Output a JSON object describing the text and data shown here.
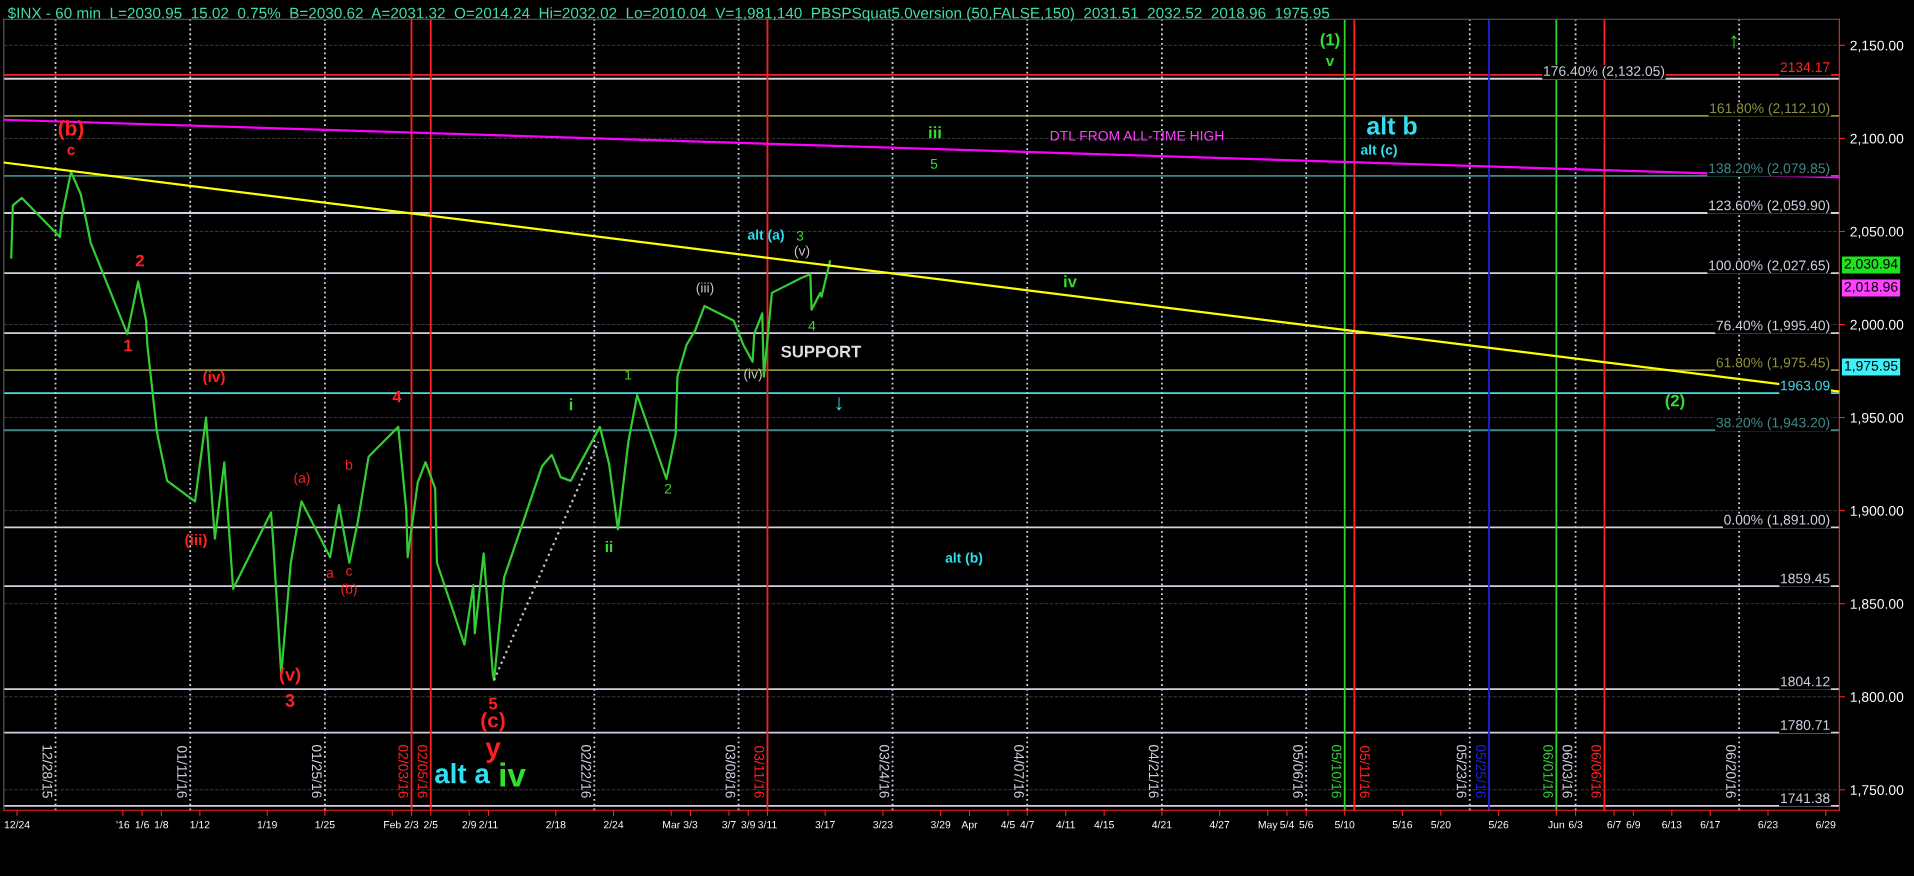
{
  "chart_data": {
    "type": "line",
    "title": "$INX - 60 min  L=2030.95  15.02  0.75%  B=2030.62  A=2031.32  O=2014.24  Hi=2032.02  Lo=2010.04  V=1,981,140  PBSPSquat5.0version (50,FALSE,150)  2031.51  2032.52  2018.96  1975.95",
    "xlim": [
      "2015-12-22T15:00",
      "2016-06-30T10:00"
    ],
    "ylim": [
      1739,
      2164
    ],
    "yticks": [
      {
        "value": 1750,
        "label": "1,750.00"
      },
      {
        "value": 1800,
        "label": "1,800.00"
      },
      {
        "value": 1850,
        "label": "1,850.00"
      },
      {
        "value": 1900,
        "label": "1,900.00"
      },
      {
        "value": 1950,
        "label": "1,950.00"
      },
      {
        "value": 2000,
        "label": "2,000.00"
      },
      {
        "value": 2050,
        "label": "2,050.00"
      },
      {
        "value": 2100,
        "label": "2,100.00"
      },
      {
        "value": 2150,
        "label": "2,150.00"
      }
    ],
    "xticks": [
      {
        "value": "2015-12-24",
        "label": "12/24"
      },
      {
        "value": "2016-01-04",
        "label": "'16"
      },
      {
        "value": "2016-01-06",
        "label": "1/6"
      },
      {
        "value": "2016-01-08",
        "label": "1/8"
      },
      {
        "value": "2016-01-12",
        "label": "1/12"
      },
      {
        "value": "2016-01-19",
        "label": "1/19"
      },
      {
        "value": "2016-01-25",
        "label": "1/25"
      },
      {
        "value": "2016-02-01",
        "label": "Feb"
      },
      {
        "value": "2016-02-03",
        "label": "2/3"
      },
      {
        "value": "2016-02-05",
        "label": "2/5"
      },
      {
        "value": "2016-02-09",
        "label": "2/9"
      },
      {
        "value": "2016-02-11",
        "label": "2/11"
      },
      {
        "value": "2016-02-18",
        "label": "2/18"
      },
      {
        "value": "2016-02-24",
        "label": "2/24"
      },
      {
        "value": "2016-03-01",
        "label": "Mar"
      },
      {
        "value": "2016-03-03",
        "label": "3/3"
      },
      {
        "value": "2016-03-07",
        "label": "3/7"
      },
      {
        "value": "2016-03-09",
        "label": "3/9"
      },
      {
        "value": "2016-03-11",
        "label": "3/11"
      },
      {
        "value": "2016-03-17",
        "label": "3/17"
      },
      {
        "value": "2016-03-23",
        "label": "3/23"
      },
      {
        "value": "2016-03-29",
        "label": "3/29"
      },
      {
        "value": "2016-04-01",
        "label": "Apr"
      },
      {
        "value": "2016-04-05",
        "label": "4/5"
      },
      {
        "value": "2016-04-07",
        "label": "4/7"
      },
      {
        "value": "2016-04-11",
        "label": "4/11"
      },
      {
        "value": "2016-04-15",
        "label": "4/15"
      },
      {
        "value": "2016-04-21",
        "label": "4/21"
      },
      {
        "value": "2016-04-27",
        "label": "4/27"
      },
      {
        "value": "2016-05-02",
        "label": "May"
      },
      {
        "value": "2016-05-04",
        "label": "5/4"
      },
      {
        "value": "2016-05-06",
        "label": "5/6"
      },
      {
        "value": "2016-05-10",
        "label": "5/10"
      },
      {
        "value": "2016-05-16",
        "label": "5/16"
      },
      {
        "value": "2016-05-20",
        "label": "5/20"
      },
      {
        "value": "2016-05-26",
        "label": "5/26"
      },
      {
        "value": "2016-06-01",
        "label": "Jun"
      },
      {
        "value": "2016-06-03",
        "label": "6/3"
      },
      {
        "value": "2016-06-07",
        "label": "6/7"
      },
      {
        "value": "2016-06-09",
        "label": "6/9"
      },
      {
        "value": "2016-06-13",
        "label": "6/13"
      },
      {
        "value": "2016-06-17",
        "label": "6/17"
      },
      {
        "value": "2016-06-23",
        "label": "6/23"
      },
      {
        "value": "2016-06-29",
        "label": "6/29"
      }
    ],
    "grid": "y",
    "series": [
      {
        "color": "#33cc33",
        "x": [
          "2015-12-23T09:30",
          "2015-12-23T13:30",
          "2015-12-24T12:00",
          "2015-12-28T11:00",
          "2015-12-28T15:00",
          "2015-12-29T14:30",
          "2015-12-30T15:00",
          "2015-12-31T11:00",
          "2015-12-31T15:30",
          "2016-01-04T11:00",
          "2016-01-05T14:00",
          "2016-01-06T10:00",
          "2016-01-06T13:00",
          "2016-01-07T12:00",
          "2016-01-07T15:00",
          "2016-01-08T14:30",
          "2016-01-11T12:00",
          "2016-01-12T15:30",
          "2016-01-13T13:30",
          "2016-01-14T13:00",
          "2016-01-15T11:00",
          "2016-01-19T09:30",
          "2016-01-19T14:30",
          "2016-01-20T11:00",
          "2016-01-21T11:00",
          "2016-01-22T13:30",
          "2016-01-25T13:00",
          "2016-01-26T11:00",
          "2016-01-27T13:00",
          "2016-01-28T10:00",
          "2016-01-29T13:00",
          "2016-02-01T15:00",
          "2016-02-02T11:00",
          "2016-02-02T14:30",
          "2016-02-03T15:30",
          "2016-02-04T11:00",
          "2016-02-05T11:00",
          "2016-02-05T15:30",
          "2016-02-08T12:00",
          "2016-02-09T10:00",
          "2016-02-09T14:00",
          "2016-02-10T12:00",
          "2016-02-11T11:00",
          "2016-02-11T14:00",
          "2016-02-12T15:00",
          "2016-02-16T14:00",
          "2016-02-17T14:00",
          "2016-02-18T12:00",
          "2016-02-19T13:00",
          "2016-02-22T14:00",
          "2016-02-23T13:00",
          "2016-02-24T11:00",
          "2016-02-25T13:00",
          "2016-02-26T11:00",
          "2016-02-29T12:00",
          "2016-03-01T11:00",
          "2016-03-01T15:30",
          "2016-03-02T14:00",
          "2016-03-03T12:00",
          "2016-03-04T11:00",
          "2016-03-07T12:00",
          "2016-03-08T12:00",
          "2016-03-09T11:00",
          "2016-03-09T15:00",
          "2016-03-10T11:00",
          "2016-03-10T15:00",
          "2016-03-11T11:00",
          "2016-03-14T12:00",
          "2016-03-15T11:00",
          "2016-03-15T14:00",
          "2016-03-16T12:00",
          "2016-03-16T15:00",
          "2016-03-17T12:00"
        ],
        "values": [
          2036,
          2064,
          2068,
          2047,
          2057,
          2082,
          2070,
          2049,
          2044,
          1995,
          2023,
          2002,
          1989,
          1944,
          1940,
          1916,
          1905,
          1950,
          1885,
          1926,
          1858,
          1899,
          1885,
          1812,
          1872,
          1905,
          1875,
          1903,
          1872,
          1894,
          1929,
          1945,
          1900,
          1875,
          1915,
          1926,
          1912,
          1872,
          1828,
          1860,
          1834,
          1877,
          1812,
          1809,
          1864,
          1924,
          1930,
          1918,
          1916,
          1945,
          1925,
          1890,
          1937,
          1962,
          1917,
          1941,
          1972,
          1989,
          1997,
          2010,
          2002,
          1989,
          1980,
          1995,
          2006,
          1972,
          2017,
          2025,
          2027,
          2008,
          2017,
          2015,
          2034
        ]
      },
      {
        "color": "#ffff00",
        "x": [
          "2015-12-22T15:00",
          "2016-06-30T10:00"
        ],
        "values": [
          2087,
          1964
        ]
      },
      {
        "color": "#ff00ff",
        "x": [
          "2015-12-22T15:00",
          "2016-06-30T10:00"
        ],
        "values": [
          2110,
          2079
        ]
      },
      {
        "color": "#c0c0c0",
        "line_style": "dotted",
        "x": [
          "2016-02-11T14:00",
          "2016-02-22T10:00"
        ],
        "values": [
          1809,
          1937
        ]
      }
    ],
    "ref_lines": [
      {
        "axis": "y",
        "value": 2134.17,
        "label": "2134.17",
        "color": "#ff2020"
      },
      {
        "axis": "y",
        "value": 2132.05,
        "label": "176.40% (2,132.05)",
        "color": "#d0d0e0"
      },
      {
        "axis": "y",
        "value": 2112.1,
        "label": "161.80% (2,112.10)",
        "color": "#909040"
      },
      {
        "axis": "y",
        "value": 2079.85,
        "label": "138.20% (2,079.85)",
        "color": "#408888"
      },
      {
        "axis": "y",
        "value": 2059.9,
        "label": "123.60% (2,059.90)",
        "color": "#d0d0e0"
      },
      {
        "axis": "y",
        "value": 2027.65,
        "label": "100.00% (2,027.65)",
        "color": "#d0d0e0"
      },
      {
        "axis": "y",
        "value": 1995.4,
        "label": "76.40% (1,995.40)",
        "color": "#d0d0e0"
      },
      {
        "axis": "y",
        "value": 1975.45,
        "label": "61.80% (1,975.45)",
        "color": "#909040"
      },
      {
        "axis": "y",
        "value": 1963.09,
        "label": "1963.09",
        "color": "#40e0e8"
      },
      {
        "axis": "y",
        "value": 1943.2,
        "label": "38.20% (1,943.20)",
        "color": "#408888"
      },
      {
        "axis": "y",
        "value": 1891.0,
        "label": "0.00% (1,891.00)",
        "color": "#d0d0e0"
      },
      {
        "axis": "y",
        "value": 1859.45,
        "label": "1859.45",
        "color": "#d0d0e0"
      },
      {
        "axis": "y",
        "value": 1804.12,
        "label": "1804.12",
        "color": "#d0d0e0"
      },
      {
        "axis": "y",
        "value": 1780.71,
        "label": "1780.71",
        "color": "#d0d0e0"
      },
      {
        "axis": "y",
        "value": 1741.38,
        "label": "1741.38",
        "color": "#d0d0e0"
      },
      {
        "axis": "x",
        "value": "2015-12-28",
        "label": "12/28/15",
        "color": "#d0d0e0",
        "line_style": "dotted"
      },
      {
        "axis": "x",
        "value": "2016-01-11",
        "label": "01/11/16",
        "color": "#d0d0e0",
        "line_style": "dotted"
      },
      {
        "axis": "x",
        "value": "2016-01-25",
        "label": "01/25/16",
        "color": "#d0d0e0",
        "line_style": "dotted"
      },
      {
        "axis": "x",
        "value": "2016-02-03",
        "label": "02/03/16",
        "color": "#ff2020"
      },
      {
        "axis": "x",
        "value": "2016-02-05",
        "label": "02/05/16",
        "color": "#ff2020"
      },
      {
        "axis": "x",
        "value": "2016-02-22",
        "label": "02/22/16",
        "color": "#d0d0e0",
        "line_style": "dotted"
      },
      {
        "axis": "x",
        "value": "2016-03-08",
        "label": "03/08/16",
        "color": "#d0d0e0",
        "line_style": "dotted"
      },
      {
        "axis": "x",
        "value": "2016-03-11",
        "label": "03/11/16",
        "color": "#ff2020"
      },
      {
        "axis": "x",
        "value": "2016-03-24",
        "label": "03/24/16",
        "color": "#d0d0e0",
        "line_style": "dotted"
      },
      {
        "axis": "x",
        "value": "2016-04-07",
        "label": "04/07/16",
        "color": "#d0d0e0",
        "line_style": "dotted"
      },
      {
        "axis": "x",
        "value": "2016-04-21",
        "label": "04/21/16",
        "color": "#d0d0e0",
        "line_style": "dotted"
      },
      {
        "axis": "x",
        "value": "2016-05-06",
        "label": "05/06/16",
        "color": "#d0d0e0",
        "line_style": "dotted"
      },
      {
        "axis": "x",
        "value": "2016-05-10",
        "label": "05/10/16",
        "color": "#30d030"
      },
      {
        "axis": "x",
        "value": "2016-05-11",
        "label": "05/11/16",
        "color": "#ff2020"
      },
      {
        "axis": "x",
        "value": "2016-05-23",
        "label": "05/23/16",
        "color": "#d0d0e0",
        "line_style": "dotted"
      },
      {
        "axis": "x",
        "value": "2016-05-25",
        "label": "05/25/16",
        "color": "#2020e0"
      },
      {
        "axis": "x",
        "value": "2016-06-01",
        "label": "06/01/16",
        "color": "#30d030"
      },
      {
        "axis": "x",
        "value": "2016-06-03",
        "label": "06/03/16",
        "color": "#d0d0e0",
        "line_style": "dotted"
      },
      {
        "axis": "x",
        "value": "2016-06-06",
        "label": "06/06/16",
        "color": "#ff2020"
      },
      {
        "axis": "x",
        "value": "2016-06-20",
        "label": "06/20/16",
        "color": "#d0d0e0",
        "line_style": "dotted"
      }
    ],
    "annotations": [
      "(b)",
      "c",
      "1",
      "2",
      "(iii)",
      "(iv)",
      "(v)",
      "3",
      "(a)",
      "a",
      "b",
      "c",
      "(b)",
      "4",
      "alt a",
      "5",
      "(c)",
      "y",
      "iv",
      "i",
      "ii",
      "1",
      "2",
      "(iii)",
      "(iv)",
      "alt (a)",
      "3",
      "(v)",
      "4",
      "SUPPORT",
      "↓",
      "iii",
      "5",
      "alt (b)",
      "iv",
      "DTL FROM ALL-TIME HIGH",
      "(1)",
      "v",
      "alt b",
      "alt (c)",
      "(2)",
      "↑",
      "2,030.94",
      "2,018.96",
      "1,975.95"
    ]
  }
}
